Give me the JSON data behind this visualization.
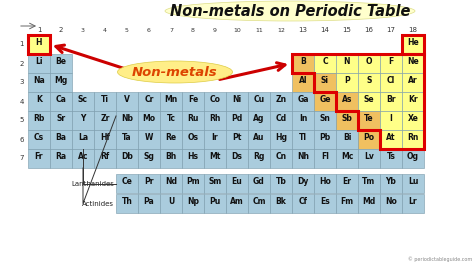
{
  "title": "Non-metals on Periodic Table",
  "subtitle": "Non-metals",
  "bg_color": "#ffffff",
  "cell_color_default": "#aaccdd",
  "cell_color_nonmetal": "#ffff88",
  "cell_color_metalloid": "#f0c060",
  "highlight_border": "#dd0000",
  "title_bg": "#fffff0",
  "website": "© periodictableguide.com",
  "elements": [
    [
      "H",
      "",
      "",
      "",
      "",
      "",
      "",
      "",
      "",
      "",
      "",
      "",
      "",
      "",
      "",
      "",
      "",
      "He"
    ],
    [
      "Li",
      "Be",
      "",
      "",
      "",
      "",
      "",
      "",
      "",
      "",
      "",
      "",
      "B",
      "C",
      "N",
      "O",
      "F",
      "Ne"
    ],
    [
      "Na",
      "Mg",
      "",
      "",
      "",
      "",
      "",
      "",
      "",
      "",
      "",
      "",
      "Al",
      "Si",
      "P",
      "S",
      "Cl",
      "Ar"
    ],
    [
      "K",
      "Ca",
      "Sc",
      "Ti",
      "V",
      "Cr",
      "Mn",
      "Fe",
      "Co",
      "Ni",
      "Cu",
      "Zn",
      "Ga",
      "Ge",
      "As",
      "Se",
      "Br",
      "Kr"
    ],
    [
      "Rb",
      "Sr",
      "Y",
      "Zr",
      "Nb",
      "Mo",
      "Tc",
      "Ru",
      "Rh",
      "Pd",
      "Ag",
      "Cd",
      "In",
      "Sn",
      "Sb",
      "Te",
      "I",
      "Xe"
    ],
    [
      "Cs",
      "Ba",
      "La",
      "Hf",
      "Ta",
      "W",
      "Re",
      "Os",
      "Ir",
      "Pt",
      "Au",
      "Hg",
      "Tl",
      "Pb",
      "Bi",
      "Po",
      "At",
      "Rn"
    ],
    [
      "Fr",
      "Ra",
      "Ac",
      "Rf",
      "Db",
      "Sg",
      "Bh",
      "Hs",
      "Mt",
      "Ds",
      "Rg",
      "Cn",
      "Nh",
      "Fl",
      "Mc",
      "Lv",
      "Ts",
      "Og"
    ]
  ],
  "lanthanides": [
    "Ce",
    "Pr",
    "Nd",
    "Pm",
    "Sm",
    "Eu",
    "Gd",
    "Tb",
    "Dy",
    "Ho",
    "Er",
    "Tm",
    "Yb",
    "Lu"
  ],
  "actinides": [
    "Th",
    "Pa",
    "U",
    "Np",
    "Pu",
    "Am",
    "Cm",
    "Bk",
    "Cf",
    "Es",
    "Fm",
    "Md",
    "No",
    "Lr"
  ],
  "nonmetals": [
    "H",
    "C",
    "N",
    "O",
    "F",
    "Ne",
    "P",
    "S",
    "Cl",
    "Ar",
    "Se",
    "Br",
    "Kr",
    "I",
    "Xe",
    "At",
    "Rn",
    "He"
  ],
  "metalloids": [
    "B",
    "Si",
    "Ge",
    "As",
    "Sb",
    "Te",
    "Po",
    "Al"
  ],
  "period_labels": [
    "1",
    "2",
    "3",
    "4",
    "5",
    "6",
    "7"
  ],
  "group_labels": [
    "1",
    "",
    "2",
    "",
    "3",
    "4",
    "5",
    "6",
    "7",
    "8",
    "9",
    "10",
    "11",
    "12",
    "13",
    "14",
    "15",
    "16",
    "17",
    "18"
  ],
  "lm": 28,
  "tm": 35,
  "cw": 22,
  "ch": 19
}
